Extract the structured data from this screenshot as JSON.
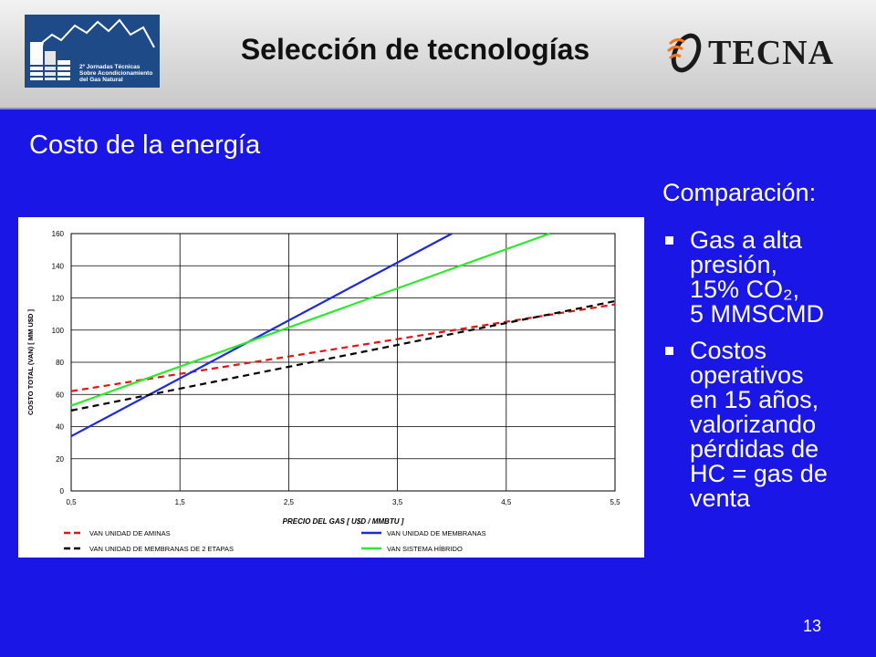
{
  "header": {
    "title": "Selección de tecnologías",
    "logo_left_text": [
      "2º Jornadas Técnicas",
      "Sobre Acondicionamiento",
      "del Gas Natural"
    ],
    "logo_right_text": "TECNA"
  },
  "subtitle": "Costo de la energía",
  "comparison": {
    "heading": "Comparación:",
    "bullets": [
      {
        "lines": [
          "Gas a alta",
          "presión,",
          "15% CO₂,",
          "5 MMSCMD"
        ]
      },
      {
        "lines": [
          "Costos",
          "operativos",
          "en 15 años,",
          "valorizando",
          "pérdidas de",
          "HC = gas de",
          "venta"
        ]
      }
    ]
  },
  "page_number": "13",
  "chart_data": {
    "type": "line",
    "xlabel": "PRECIO DEL GAS [ U$D / MMBTU ]",
    "ylabel": "COSTO TOTAL (VAN) [ MM U$D ]",
    "xlim": [
      0.5,
      5.5
    ],
    "ylim": [
      0,
      160
    ],
    "xticks": [
      "0,5",
      "1,5",
      "2,5",
      "3,5",
      "4,5",
      "5,5"
    ],
    "yticks": [
      "0",
      "20",
      "40",
      "60",
      "80",
      "100",
      "120",
      "140",
      "160"
    ],
    "grid": true,
    "legend_position": "bottom",
    "series": [
      {
        "name": "VAN UNIDAD DE AMINAS",
        "color": "#e81010",
        "dash": "dashed",
        "x": [
          0.5,
          5.5
        ],
        "y": [
          62,
          116
        ]
      },
      {
        "name": "VAN UNIDAD DE MEMBRANAS",
        "color": "#1c2bd6",
        "dash": "solid",
        "x": [
          0.5,
          4.0
        ],
        "y": [
          34,
          160
        ]
      },
      {
        "name": "VAN UNIDAD DE MEMBRANAS DE 2 ETAPAS",
        "color": "#000000",
        "dash": "dashed",
        "x": [
          0.5,
          5.5
        ],
        "y": [
          50,
          118
        ]
      },
      {
        "name": "VAN SISTEMA HÍBRIDO",
        "color": "#2ee82e",
        "dash": "solid",
        "x": [
          0.5,
          4.9
        ],
        "y": [
          53,
          160
        ]
      }
    ]
  }
}
